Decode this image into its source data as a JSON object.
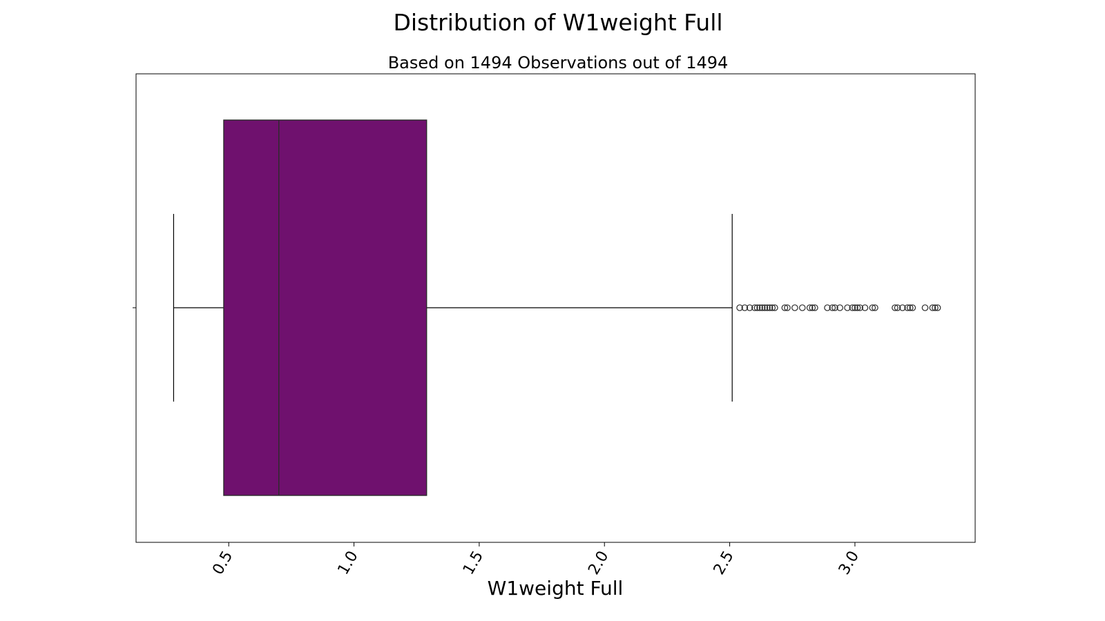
{
  "chart_data": {
    "type": "boxplot",
    "title": "Distribution of W1weight Full",
    "subtitle": "Based on 1494 Observations out of 1494",
    "xlabel": "W1weight Full",
    "ylabel": "",
    "xlim": [
      0.13,
      3.48
    ],
    "xticks": [
      "0.5",
      "1.0",
      "1.5",
      "2.0",
      "2.5",
      "3.0"
    ],
    "xtick_values": [
      0.5,
      1.0,
      1.5,
      2.0,
      2.5,
      3.0
    ],
    "grid": false,
    "orientation": "horizontal",
    "box": {
      "whisker_low": 0.28,
      "q1": 0.48,
      "median": 0.7,
      "q3": 1.29,
      "whisker_high": 2.51
    },
    "outliers": [
      2.54,
      2.56,
      2.58,
      2.6,
      2.61,
      2.62,
      2.63,
      2.64,
      2.65,
      2.66,
      2.67,
      2.68,
      2.72,
      2.73,
      2.76,
      2.79,
      2.82,
      2.83,
      2.84,
      2.89,
      2.91,
      2.92,
      2.94,
      2.97,
      2.99,
      3.0,
      3.01,
      3.02,
      3.04,
      3.07,
      3.08,
      3.16,
      3.17,
      3.19,
      3.21,
      3.22,
      3.23,
      3.28,
      3.31,
      3.32,
      3.33
    ],
    "colors": {
      "box_fill": "#6f116e",
      "box_edge": "#2b2b2b",
      "line": "#000000"
    }
  }
}
